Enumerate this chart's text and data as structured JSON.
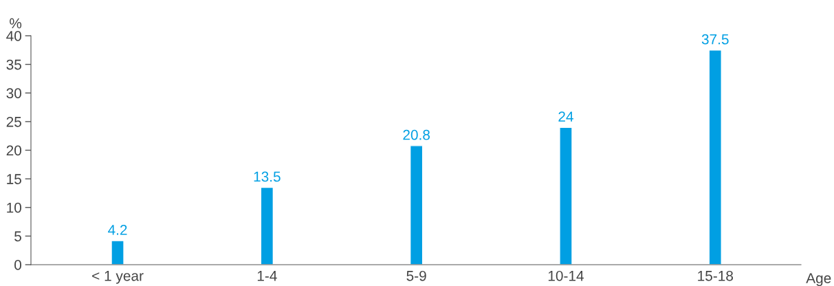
{
  "chart_data": {
    "type": "bar",
    "ylabel": "%",
    "xlabel": "Age",
    "categories": [
      "< 1 year",
      "1-4",
      "5-9",
      "10-14",
      "15-18"
    ],
    "values": [
      4.2,
      13.5,
      20.8,
      24,
      37.5
    ],
    "color": "#009fe3",
    "ylim": [
      0,
      40
    ],
    "yticks": [
      0,
      5,
      10,
      15,
      20,
      25,
      30,
      35,
      40
    ],
    "data_labels": true,
    "grid": false,
    "legend": false
  }
}
